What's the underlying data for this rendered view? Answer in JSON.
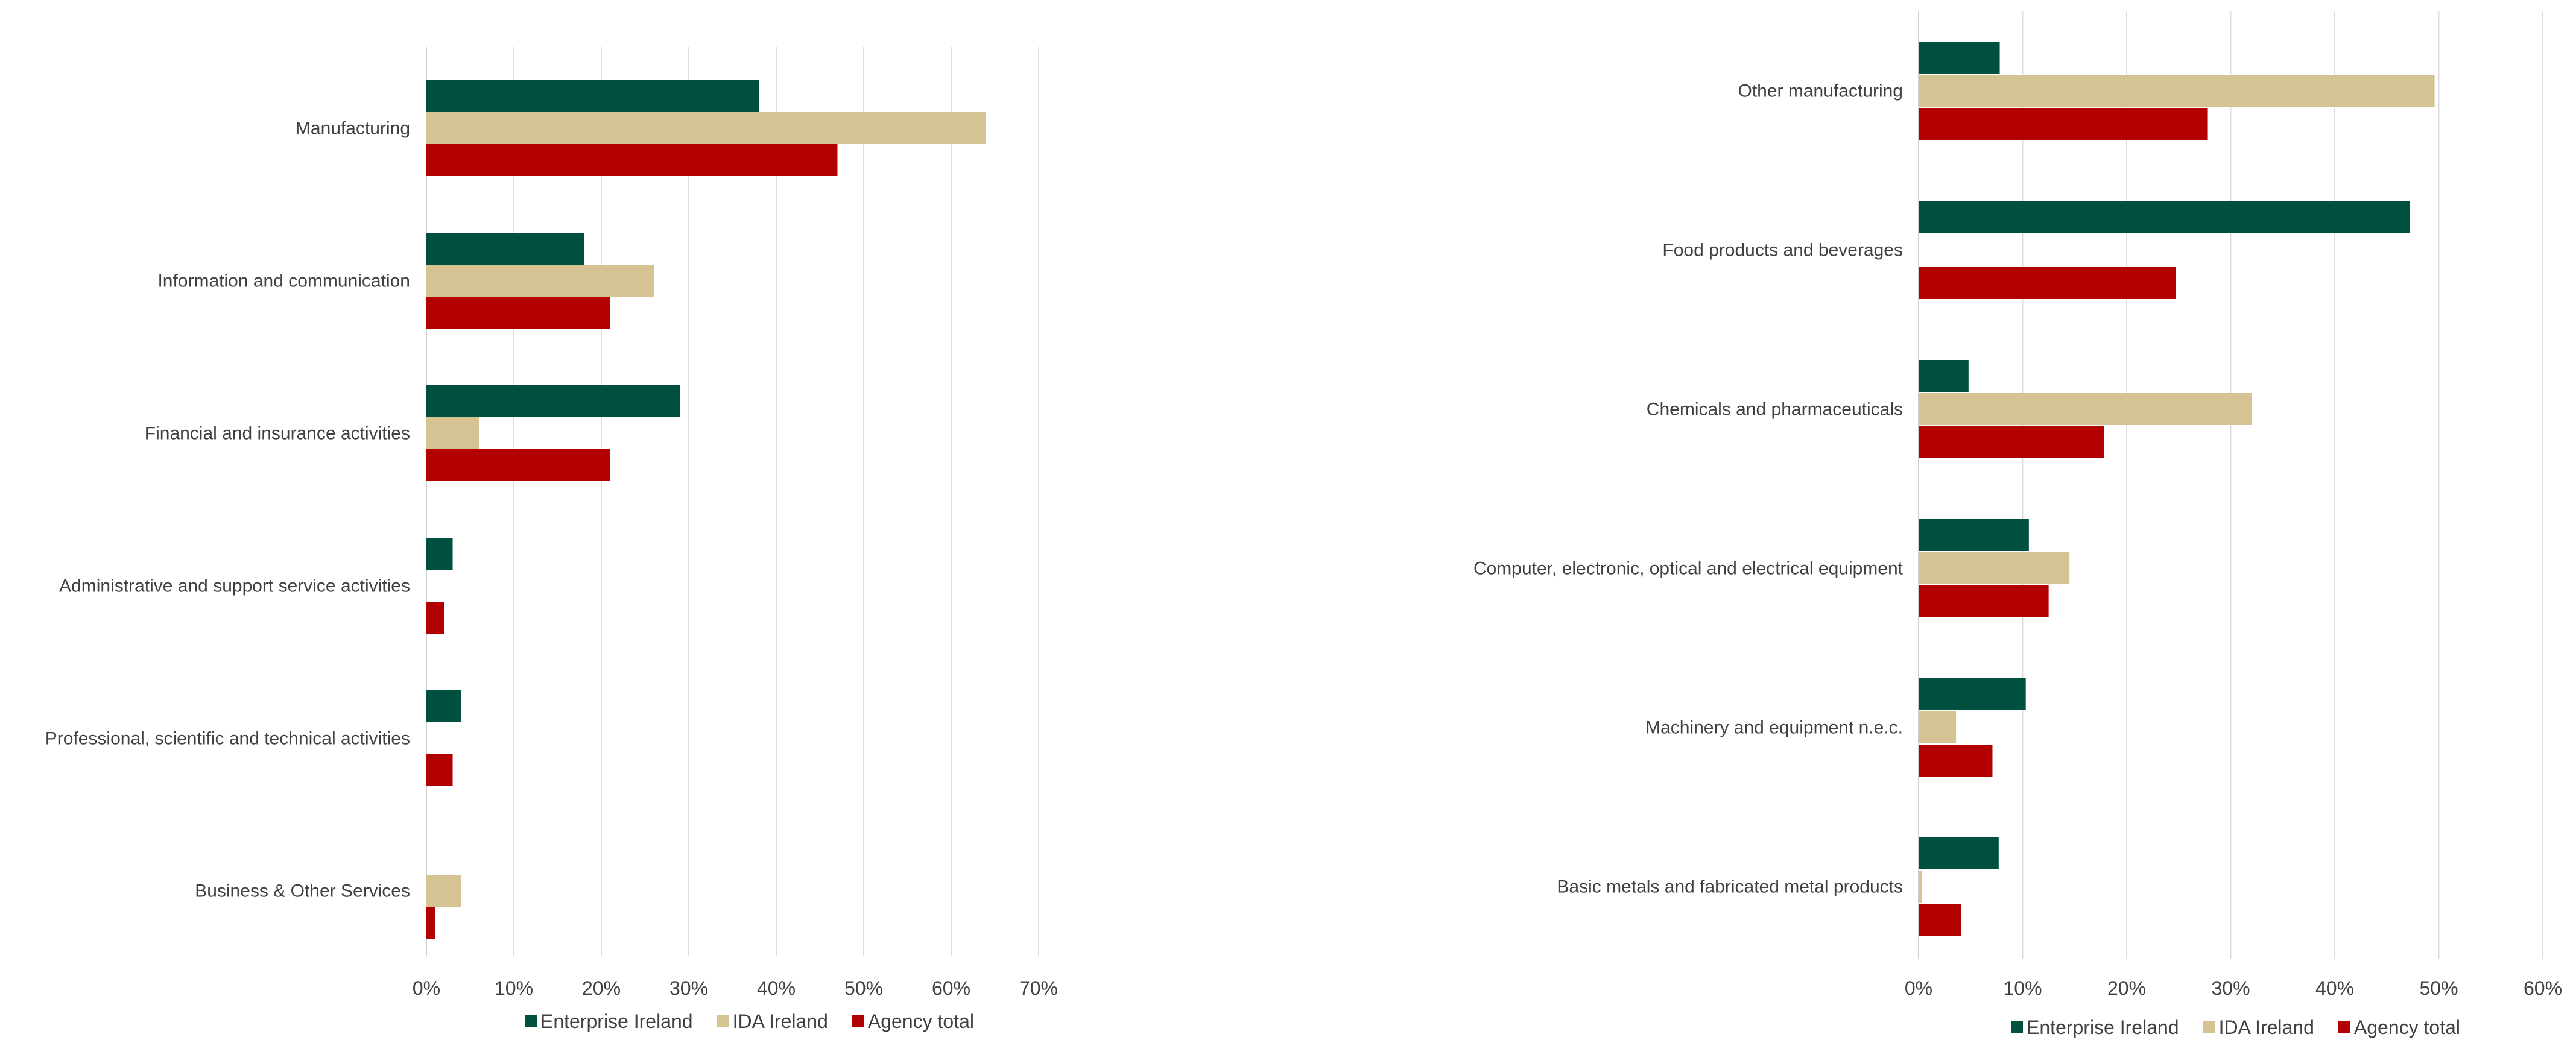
{
  "chart_data": [
    {
      "type": "bar",
      "orientation": "horizontal",
      "categories": [
        "Manufacturing",
        "Information and communication",
        "Financial and insurance activities",
        "Administrative and support service activities",
        "Professional, scientific and technical activities",
        "Business & Other Services"
      ],
      "series": [
        {
          "name": "Enterprise Ireland",
          "color": "#00503f",
          "values": [
            38,
            18,
            29,
            3,
            4,
            0
          ]
        },
        {
          "name": "IDA Ireland",
          "color": "#d6c393",
          "values": [
            64,
            26,
            6,
            0,
            0,
            4
          ]
        },
        {
          "name": "Agency total",
          "color": "#b20000",
          "values": [
            47,
            21,
            21,
            2,
            3,
            1
          ]
        }
      ],
      "xlim": [
        0,
        70
      ],
      "ticks": [
        "0%",
        "10%",
        "20%",
        "30%",
        "40%",
        "50%",
        "60%",
        "70%"
      ],
      "grid": true,
      "legend": "bottom"
    },
    {
      "type": "bar",
      "orientation": "horizontal",
      "categories": [
        "Other manufacturing",
        "Food products and beverages",
        "Chemicals and pharmaceuticals",
        "Computer, electronic, optical and electrical equipment",
        "Machinery and equipment n.e.c.",
        "Basic metals and fabricated metal products"
      ],
      "series": [
        {
          "name": "Enterprise Ireland",
          "color": "#00503f",
          "values": [
            7.8,
            47.2,
            4.8,
            10.6,
            10.3,
            7.7
          ]
        },
        {
          "name": "IDA Ireland",
          "color": "#d6c393",
          "values": [
            49.6,
            0,
            32,
            14.5,
            3.6,
            0.3
          ]
        },
        {
          "name": "Agency total",
          "color": "#b20000",
          "values": [
            27.8,
            24.7,
            17.8,
            12.5,
            7.1,
            4.1
          ]
        }
      ],
      "xlim": [
        0,
        60
      ],
      "ticks": [
        "0%",
        "10%",
        "20%",
        "30%",
        "40%",
        "50%",
        "60%"
      ],
      "grid": true,
      "legend": "bottom"
    }
  ]
}
